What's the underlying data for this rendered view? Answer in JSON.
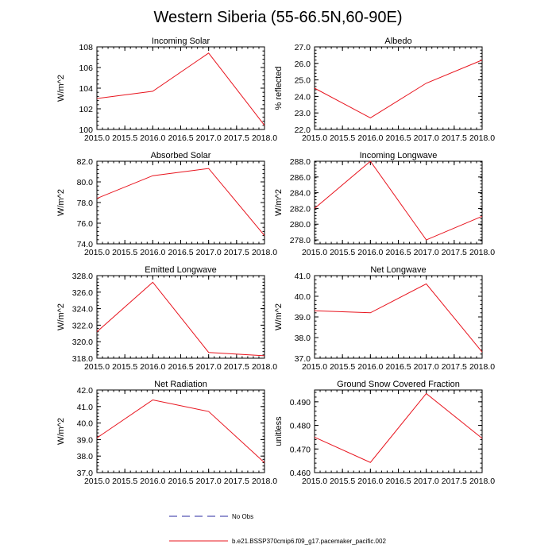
{
  "title": "Western Siberia (55-66.5N,60-90E)",
  "colors": {
    "model": "#e8141e",
    "obs": "#2a2aa0",
    "axis": "#000000"
  },
  "legend": {
    "obs_label": "No Obs",
    "model_label": "b.e21.BSSP370cmip6.f09_g17.pacemaker_pacific.002"
  },
  "chart_data": [
    {
      "type": "line",
      "title": "Incoming Solar",
      "xlabel": "",
      "ylabel": "W/m^2",
      "x": [
        2015.0,
        2016.0,
        2017.0,
        2018.0
      ],
      "values": [
        103.0,
        103.7,
        107.4,
        100.4
      ],
      "xlim": [
        2015.0,
        2018.0
      ],
      "ylim": [
        100,
        108
      ],
      "xticks": [
        "2015.0",
        "2015.5",
        "2016.0",
        "2016.5",
        "2017.0",
        "2017.5",
        "2018.0"
      ],
      "yticks": [
        "100",
        "102",
        "104",
        "106",
        "108"
      ]
    },
    {
      "type": "line",
      "title": "Albedo",
      "xlabel": "",
      "ylabel": "% reflected",
      "x": [
        2015.0,
        2016.0,
        2017.0,
        2018.0
      ],
      "values": [
        24.5,
        22.7,
        24.8,
        26.2
      ],
      "xlim": [
        2015.0,
        2018.0
      ],
      "ylim": [
        22.0,
        27.0
      ],
      "xticks": [
        "2015.0",
        "2015.5",
        "2016.0",
        "2016.5",
        "2017.0",
        "2017.5",
        "2018.0"
      ],
      "yticks": [
        "22.0",
        "23.0",
        "24.0",
        "25.0",
        "26.0",
        "27.0"
      ]
    },
    {
      "type": "line",
      "title": "Absorbed Solar",
      "xlabel": "",
      "ylabel": "W/m^2",
      "x": [
        2015.0,
        2016.0,
        2017.0,
        2018.0
      ],
      "values": [
        78.4,
        80.6,
        81.3,
        74.8
      ],
      "xlim": [
        2015.0,
        2018.0
      ],
      "ylim": [
        74.0,
        82.0
      ],
      "xticks": [
        "2015.0",
        "2015.5",
        "2016.0",
        "2016.5",
        "2017.0",
        "2017.5",
        "2018.0"
      ],
      "yticks": [
        "74.0",
        "76.0",
        "78.0",
        "80.0",
        "82.0"
      ]
    },
    {
      "type": "line",
      "title": "Incoming Longwave",
      "xlabel": "",
      "ylabel": "W/m^2",
      "x": [
        2015.0,
        2016.0,
        2017.0,
        2018.0
      ],
      "values": [
        282.0,
        288.0,
        278.0,
        281.0
      ],
      "xlim": [
        2015.0,
        2018.0
      ],
      "ylim": [
        277.5,
        288.0
      ],
      "xticks": [
        "2015.0",
        "2015.5",
        "2016.0",
        "2016.5",
        "2017.0",
        "2017.5",
        "2018.0"
      ],
      "yticks": [
        "278.0",
        "280.0",
        "282.0",
        "284.0",
        "286.0",
        "288.0"
      ]
    },
    {
      "type": "line",
      "title": "Emitted Longwave",
      "xlabel": "",
      "ylabel": "W/m^2",
      "x": [
        2015.0,
        2016.0,
        2017.0,
        2018.0
      ],
      "values": [
        321.2,
        327.2,
        318.7,
        318.3
      ],
      "xlim": [
        2015.0,
        2018.0
      ],
      "ylim": [
        318.0,
        328.0
      ],
      "xticks": [
        "2015.0",
        "2015.5",
        "2016.0",
        "2016.5",
        "2017.0",
        "2017.5",
        "2018.0"
      ],
      "yticks": [
        "318.0",
        "320.0",
        "322.0",
        "324.0",
        "326.0",
        "328.0"
      ]
    },
    {
      "type": "line",
      "title": "Net Longwave",
      "xlabel": "",
      "ylabel": "W/m^2",
      "x": [
        2015.0,
        2016.0,
        2017.0,
        2018.0
      ],
      "values": [
        39.3,
        39.2,
        40.6,
        37.3
      ],
      "xlim": [
        2015.0,
        2018.0
      ],
      "ylim": [
        37.0,
        41.0
      ],
      "xticks": [
        "2015.0",
        "2015.5",
        "2016.0",
        "2016.5",
        "2017.0",
        "2017.5",
        "2018.0"
      ],
      "yticks": [
        "37.0",
        "38.0",
        "39.0",
        "40.0",
        "41.0"
      ]
    },
    {
      "type": "line",
      "title": "Net Radiation",
      "xlabel": "",
      "ylabel": "W/m^2",
      "x": [
        2015.0,
        2016.0,
        2017.0,
        2018.0
      ],
      "values": [
        39.1,
        41.4,
        40.7,
        37.6
      ],
      "xlim": [
        2015.0,
        2018.0
      ],
      "ylim": [
        37.0,
        42.0
      ],
      "xticks": [
        "2015.0",
        "2015.5",
        "2016.0",
        "2016.5",
        "2017.0",
        "2017.5",
        "2018.0"
      ],
      "yticks": [
        "37.0",
        "38.0",
        "39.0",
        "40.0",
        "41.0",
        "42.0"
      ]
    },
    {
      "type": "line",
      "title": "Ground Snow Covered Fraction",
      "xlabel": "",
      "ylabel": "unitless",
      "x": [
        2015.0,
        2016.0,
        2017.0,
        2018.0
      ],
      "values": [
        0.475,
        0.4643,
        0.4935,
        0.4745
      ],
      "xlim": [
        2015.0,
        2018.0
      ],
      "ylim": [
        0.46,
        0.495
      ],
      "xticks": [
        "2015.0",
        "2015.5",
        "2016.0",
        "2016.5",
        "2017.0",
        "2017.5",
        "2018.0"
      ],
      "yticks": [
        "0.460",
        "0.470",
        "0.480",
        "0.490"
      ]
    }
  ]
}
